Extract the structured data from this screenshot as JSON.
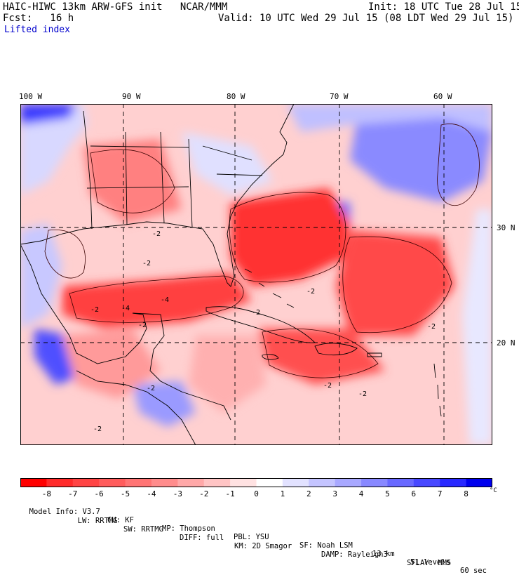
{
  "header": {
    "title_left": "HAIC-HIWC 13km ARW-GFS init   NCAR/MMM",
    "init": "Init: 18 UTC Tue 28 Jul 15",
    "fcst": "Fcst:   16 h",
    "valid": "Valid: 10 UTC Wed 29 Jul 15 (08 LDT Wed 29 Jul 15)",
    "field": "Lifted index"
  },
  "map": {
    "lon_labels": [
      "100 W",
      "90 W",
      "80 W",
      "70 W",
      "60 W"
    ],
    "lat_labels": [
      "30 N",
      "20 N"
    ],
    "contour_labels": [
      "-2",
      "-4",
      "-2",
      "-2",
      "-4",
      "-2",
      "-2",
      "-2",
      "-2",
      "-2",
      "-2",
      "-2",
      "-2"
    ]
  },
  "colorbar": {
    "labels": [
      "-8",
      "-7",
      "-6",
      "-5",
      "-4",
      "-3",
      "-2",
      "-1",
      "0",
      "1",
      "2",
      "3",
      "4",
      "5",
      "6",
      "7",
      "8"
    ],
    "unit": "°C",
    "colors": [
      "#ff0000",
      "#ff2a2a",
      "#ff4444",
      "#ff5c5c",
      "#ff7474",
      "#ff8c8c",
      "#ffa8a8",
      "#ffc4c4",
      "#ffe2e2",
      "#ffffff",
      "#e2e2ff",
      "#c4c4ff",
      "#a8a8ff",
      "#8888ff",
      "#6868ff",
      "#4848ff",
      "#2828ff",
      "#0000ee"
    ]
  },
  "model_info": {
    "line1": [
      "Model Info: V3.7",
      "CU: KF",
      "MP: Thompson",
      "PBL: YSU",
      "SF: Noah LSM",
      "13 km",
      "51 levels",
      "60 sec"
    ],
    "line2": [
      "LW: RRTMG",
      "SW: RRTMG",
      "DIFF: full",
      "KM: 2D Smagor",
      "DAMP: Rayleigh3",
      "SFLAY: MM5"
    ]
  }
}
